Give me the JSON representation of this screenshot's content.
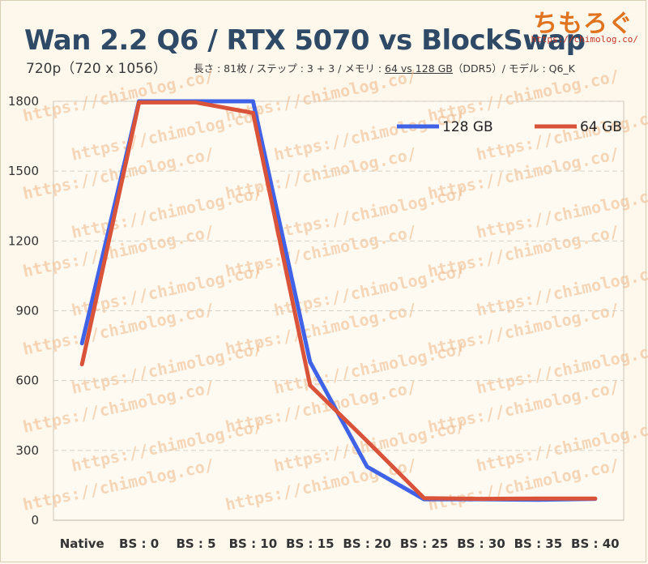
{
  "header": {
    "title": "Wan 2.2 Q6 / RTX 5070 vs BlockSwap",
    "subtitle_left": "720p（720 x 1056）",
    "subtitle_pre": "長さ : 81枚 / ステップ : 3 + 3 / メモリ : ",
    "subtitle_mem": "64 vs 128 GB",
    "subtitle_post": "（DDR5）/ モデル : Q6_K",
    "logo": "ちもろぐ",
    "logo_url": "https://chimolog.co/"
  },
  "watermark_text": "https://chimolog.co/",
  "colors": {
    "background": "#fdf7ec",
    "plot_background": "#fefaf2",
    "grid": "#d8d0c4",
    "series_128": "#3f62e6",
    "series_64": "#d9523a",
    "title": "#2e4a66",
    "watermark": "#f0b98a"
  },
  "chart_data": {
    "type": "line",
    "title": "",
    "xlabel": "",
    "ylabel": "",
    "categories": [
      "Native",
      "BS : 0",
      "BS : 5",
      "BS : 10",
      "BS : 15",
      "BS : 20",
      "BS : 25",
      "BS : 30",
      "BS : 35",
      "BS : 40"
    ],
    "ylim": [
      0,
      1800
    ],
    "yticks": [
      0,
      300,
      600,
      900,
      1200,
      1500,
      1800
    ],
    "grid": true,
    "legend_position": "top-right",
    "series": [
      {
        "name": "128 GB",
        "color": "#3f62e6",
        "values": [
          760,
          1800,
          1800,
          1800,
          680,
          230,
          90,
          90,
          88,
          92
        ]
      },
      {
        "name": "64 GB",
        "color": "#d9523a",
        "values": [
          670,
          1795,
          1795,
          1750,
          580,
          340,
          95,
          92,
          93,
          93
        ]
      }
    ]
  }
}
